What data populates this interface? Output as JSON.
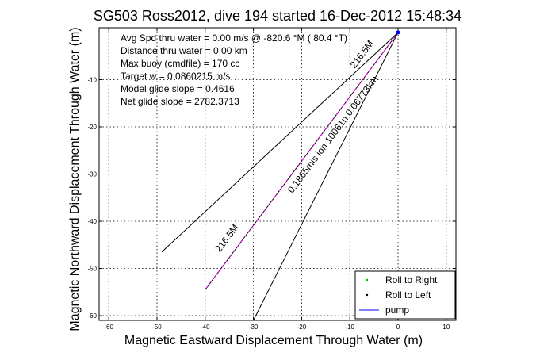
{
  "chart_data": {
    "type": "line",
    "title": "SG503 Ross2012, dive 194 started 16-Dec-2012 15:48:34",
    "xlabel": "Magnetic Eastward Displacement Through Water (m)",
    "ylabel": "Magnetic Northward Displacement Through Water (m)",
    "xlim": [
      -62,
      12
    ],
    "ylim": [
      -61,
      1
    ],
    "xticks": [
      -60,
      -50,
      -40,
      -30,
      -20,
      -10,
      0,
      10
    ],
    "yticks": [
      -60,
      -50,
      -40,
      -30,
      -20,
      -10
    ],
    "grid": true,
    "info_lines": [
      "Avg Spd thru water =  0.00 m/s @ -820.6   °M ( 80.4 °T)",
      "Distance thru water =  0.00 km",
      "Max buoy (cmdfile) = 170 cc",
      "Target w = 0.0860215 m/s",
      "Model glide slope = 0.4616",
      "Net glide slope = 2782.3713"
    ],
    "slant_labels": {
      "upper": "216.5M",
      "middle": "0.1865mis ion 10061n  0.06773km",
      "lower": "216.5M"
    },
    "lines": [
      {
        "x": [
          0,
          -49
        ],
        "y": [
          0,
          -46.5
        ]
      },
      {
        "x": [
          0,
          -30
        ],
        "y": [
          0,
          -61
        ]
      },
      {
        "x": [
          0,
          -40
        ],
        "y": [
          0,
          -54.5
        ]
      }
    ],
    "legend": {
      "position": "bottom-right",
      "entries": [
        {
          "label": "Roll to Right",
          "marker": "dot",
          "color": "#00b000"
        },
        {
          "label": "Roll to Left",
          "marker": "dot",
          "color": "#000000"
        },
        {
          "label": "pump",
          "marker": "line",
          "color": "#0000ff"
        }
      ]
    },
    "colors": {
      "lines": "#000000",
      "track": "#ff00ff",
      "pump": "#0000ff"
    }
  }
}
